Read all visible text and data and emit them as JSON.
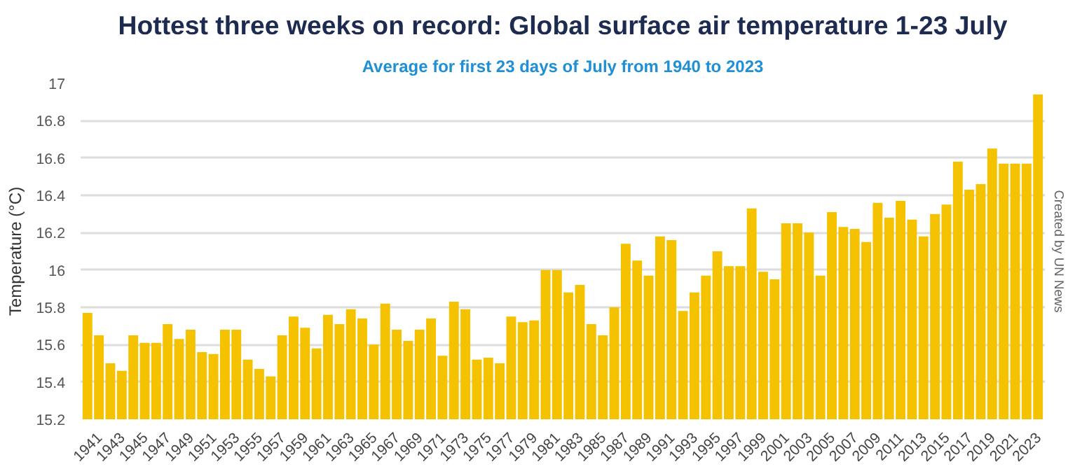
{
  "chart_data": {
    "type": "bar",
    "title": "Hottest three weeks on record: Global surface air temperature 1-23 July",
    "subtitle": "Average for first 23 days of July from 1940 to 2023",
    "ylabel": "Temperature (°C)",
    "annotations": [
      "Created by UN News"
    ],
    "categories": [
      null,
      "1941",
      null,
      "1943",
      null,
      "1945",
      null,
      "1947",
      null,
      "1949",
      null,
      "1951",
      null,
      "1953",
      null,
      "1955",
      null,
      "1957",
      null,
      "1959",
      null,
      "1961",
      null,
      "1963",
      null,
      "1965",
      null,
      "1967",
      null,
      "1969",
      null,
      "1971",
      null,
      "1973",
      null,
      "1975",
      null,
      "1977",
      null,
      "1979",
      null,
      "1981",
      null,
      "1983",
      null,
      "1985",
      null,
      "1987",
      null,
      "1989",
      null,
      "1991",
      null,
      "1993",
      null,
      "1995",
      null,
      "1997",
      null,
      "1999",
      null,
      "2001",
      null,
      "2003",
      null,
      "2005",
      null,
      "2007",
      null,
      "2009",
      null,
      "2011",
      null,
      "2013",
      null,
      "2015",
      null,
      "2017",
      null,
      "2019",
      null,
      "2021",
      null,
      "2023"
    ],
    "values": [
      15.77,
      15.65,
      15.5,
      15.46,
      15.65,
      15.61,
      15.61,
      15.71,
      15.63,
      15.68,
      15.56,
      15.55,
      15.68,
      15.68,
      15.52,
      15.47,
      15.43,
      15.65,
      15.75,
      15.69,
      15.58,
      15.76,
      15.71,
      15.79,
      15.74,
      15.6,
      15.82,
      15.68,
      15.62,
      15.68,
      15.74,
      15.54,
      15.83,
      15.79,
      15.52,
      15.53,
      15.5,
      15.75,
      15.72,
      15.73,
      16.0,
      16.0,
      15.88,
      15.92,
      15.71,
      15.65,
      15.8,
      16.14,
      16.05,
      15.97,
      16.18,
      16.16,
      15.78,
      15.88,
      15.97,
      16.1,
      16.02,
      16.02,
      16.33,
      15.99,
      15.95,
      16.25,
      16.25,
      16.2,
      15.97,
      16.31,
      16.23,
      16.22,
      16.15,
      16.36,
      16.28,
      16.37,
      16.27,
      16.18,
      16.3,
      16.35,
      16.58,
      16.43,
      16.46,
      16.65,
      16.57,
      16.57,
      16.57,
      16.94
    ],
    "color": "#f5c200",
    "ylim": [
      15.2,
      17
    ],
    "yticks": [
      15.2,
      15.4,
      15.6,
      15.8,
      16,
      16.2,
      16.4,
      16.6,
      16.8,
      17
    ],
    "grid": "y"
  }
}
